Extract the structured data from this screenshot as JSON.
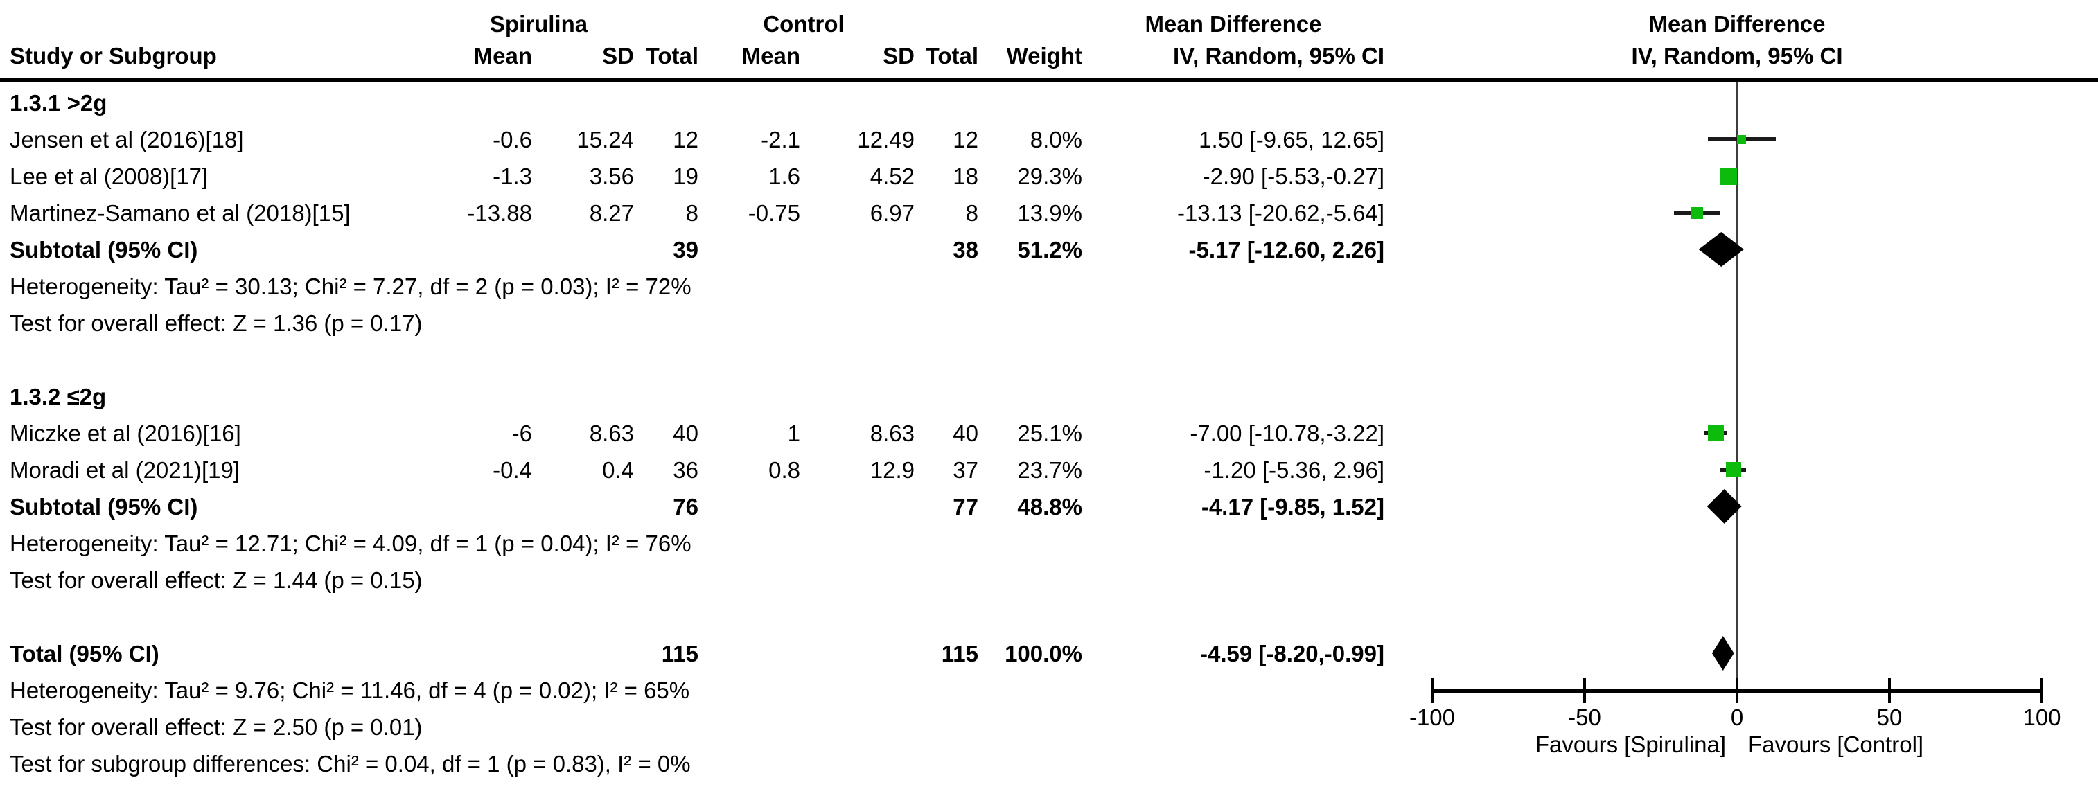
{
  "headers": {
    "group1": "Spirulina",
    "group2": "Control",
    "effect_left": "Mean Difference",
    "effect_right": "Mean Difference",
    "method_left": "IV, Random, 95% CI",
    "method_right": "IV, Random, 95% CI",
    "study": "Study or Subgroup",
    "mean": "Mean",
    "sd": "SD",
    "total": "Total",
    "weight": "Weight"
  },
  "groups": [
    {
      "label": "1.3.1 >2g",
      "studies": [
        {
          "name": "Jensen et al (2016)[18]",
          "mean1": "-0.6",
          "sd1": "15.24",
          "n1": "12",
          "mean2": "-2.1",
          "sd2": "12.49",
          "n2": "12",
          "weight": "8.0%",
          "ci": "1.50 [-9.65, 12.65]"
        },
        {
          "name": "Lee et al (2008)[17]",
          "mean1": "-1.3",
          "sd1": "3.56",
          "n1": "19",
          "mean2": "1.6",
          "sd2": "4.52",
          "n2": "18",
          "weight": "29.3%",
          "ci": "-2.90 [-5.53,-0.27]"
        },
        {
          "name": "Martinez-Samano et al (2018)[15]",
          "mean1": "-13.88",
          "sd1": "8.27",
          "n1": "8",
          "mean2": "-0.75",
          "sd2": "6.97",
          "n2": "8",
          "weight": "13.9%",
          "ci": "-13.13 [-20.62,-5.64]"
        }
      ],
      "subtotal": {
        "label": "Subtotal (95% CI)",
        "n1": "39",
        "n2": "38",
        "weight": "51.2%",
        "ci": "-5.17 [-12.60, 2.26]"
      },
      "heterogeneity": "Heterogeneity: Tau² = 30.13; Chi² = 7.27, df = 2 (p = 0.03); I² = 72%",
      "test": "Test for overall effect: Z = 1.36 (p = 0.17)"
    },
    {
      "label": "1.3.2 ≤2g",
      "studies": [
        {
          "name": "Miczke et al (2016)[16]",
          "mean1": "-6",
          "sd1": "8.63",
          "n1": "40",
          "mean2": "1",
          "sd2": "8.63",
          "n2": "40",
          "weight": "25.1%",
          "ci": "-7.00 [-10.78,-3.22]"
        },
        {
          "name": "Moradi et al (2021)[19]",
          "mean1": "-0.4",
          "sd1": "0.4",
          "n1": "36",
          "mean2": "0.8",
          "sd2": "12.9",
          "n2": "37",
          "weight": "23.7%",
          "ci": "-1.20 [-5.36, 2.96]"
        }
      ],
      "subtotal": {
        "label": "Subtotal (95% CI)",
        "n1": "76",
        "n2": "77",
        "weight": "48.8%",
        "ci": "-4.17 [-9.85, 1.52]"
      },
      "heterogeneity": "Heterogeneity: Tau² = 12.71; Chi² = 4.09, df = 1 (p = 0.04); I² = 76%",
      "test": "Test for overall effect: Z = 1.44 (p = 0.15)"
    }
  ],
  "total": {
    "label": "Total (95% CI)",
    "n1": "115",
    "n2": "115",
    "weight": "100.0%",
    "ci": "-4.59 [-8.20,-0.99]",
    "heterogeneity": "Heterogeneity: Tau² = 9.76; Chi² = 11.46, df = 4 (p = 0.02); I² = 65%",
    "test": "Test for overall effect: Z = 2.50 (p = 0.01)",
    "subgroup_test": "Test for subgroup differences: Chi² = 0.04, df = 1 (p = 0.83), I² = 0%"
  },
  "axis": {
    "ticks": [
      -100,
      -50,
      0,
      50,
      100
    ],
    "tick_labels": [
      "-100",
      "-50",
      "0",
      "50",
      "100"
    ],
    "favours_left": "Favours [Spirulina]",
    "favours_right": "Favours [Control]"
  },
  "colors": {
    "square": "#0cbb0c",
    "diamond": "#000000",
    "ci_line": "#1a1a1a",
    "zero_line": "#3d3d3d",
    "axis": "#000000"
  },
  "chart_data": {
    "type": "scatter",
    "title": "Mean Difference IV, Random, 95% CI (forest plot)",
    "xlabel": "Mean Difference",
    "xlim": [
      -100,
      100
    ],
    "x_ticks": [
      -100,
      -50,
      0,
      50,
      100
    ],
    "legend_position": "none",
    "grid": false,
    "points": [
      {
        "label": "Jensen et al (2016)[18]",
        "kind": "study",
        "md": 1.5,
        "ci_low": -9.65,
        "ci_high": 12.65,
        "weight_pct": 8.0,
        "row": 1
      },
      {
        "label": "Lee et al (2008)[17]",
        "kind": "study",
        "md": -2.9,
        "ci_low": -5.53,
        "ci_high": -0.27,
        "weight_pct": 29.3,
        "row": 2
      },
      {
        "label": "Martinez-Samano et al (2018)[15]",
        "kind": "study",
        "md": -13.13,
        "ci_low": -20.62,
        "ci_high": -5.64,
        "weight_pct": 13.9,
        "row": 3
      },
      {
        "label": "Subtotal >2g (95% CI)",
        "kind": "subtotal",
        "md": -5.17,
        "ci_low": -12.6,
        "ci_high": 2.26,
        "weight_pct": 51.2,
        "row": 4
      },
      {
        "label": "Miczke et al (2016)[16]",
        "kind": "study",
        "md": -7.0,
        "ci_low": -10.78,
        "ci_high": -3.22,
        "weight_pct": 25.1,
        "row": 9
      },
      {
        "label": "Moradi et al (2021)[19]",
        "kind": "study",
        "md": -1.2,
        "ci_low": -5.36,
        "ci_high": 2.96,
        "weight_pct": 23.7,
        "row": 10
      },
      {
        "label": "Subtotal ≤2g (95% CI)",
        "kind": "subtotal",
        "md": -4.17,
        "ci_low": -9.85,
        "ci_high": 1.52,
        "weight_pct": 48.8,
        "row": 11
      },
      {
        "label": "Total (95% CI)",
        "kind": "total",
        "md": -4.59,
        "ci_low": -8.2,
        "ci_high": -0.99,
        "weight_pct": 100.0,
        "row": 15
      }
    ]
  }
}
